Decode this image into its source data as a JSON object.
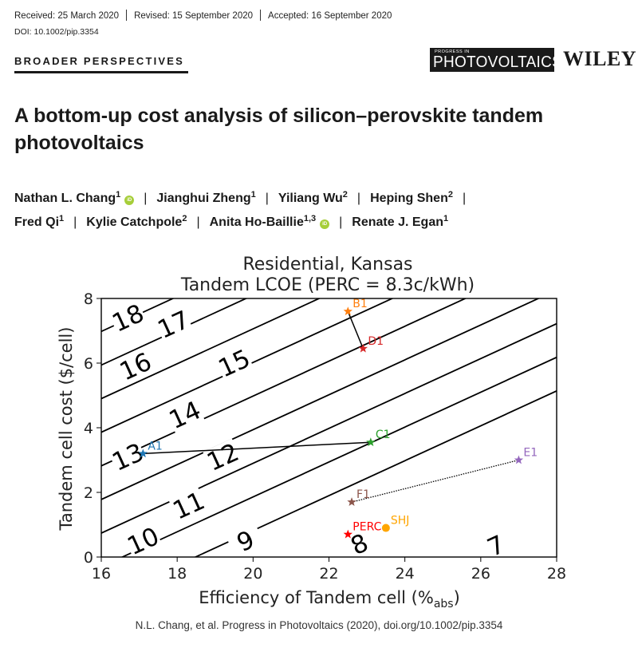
{
  "header": {
    "received": "Received: 25 March 2020",
    "revised": "Revised: 15 September 2020",
    "accepted": "Accepted: 16 September 2020",
    "doi": "DOI: 10.1002/pip.3354",
    "section": "BROADER PERSPECTIVES",
    "journal_small": "PROGRESS IN",
    "journal": "PHOTOVOLTAICS",
    "publisher": "WILEY",
    "orcid_glyph": "iD"
  },
  "article": {
    "title_line1": "A bottom-up cost analysis of silicon–perovskite tandem",
    "title_line2": "photovoltaics",
    "authors": [
      {
        "name": "Nathan L. Chang",
        "aff": "1",
        "orcid": true
      },
      {
        "name": "Jianghui Zheng",
        "aff": "1"
      },
      {
        "name": "Yiliang Wu",
        "aff": "2"
      },
      {
        "name": "Heping Shen",
        "aff": "2"
      },
      {
        "name": "Fred Qi",
        "aff": "1"
      },
      {
        "name": "Kylie Catchpole",
        "aff": "2"
      },
      {
        "name": "Anita Ho-Baillie",
        "aff": "1,3",
        "orcid": true
      },
      {
        "name": "Renate J. Egan",
        "aff": "1"
      }
    ]
  },
  "chart_data": {
    "type": "contour",
    "title": "Residential, Kansas",
    "subtitle": "Tandem LCOE (PERC = 8.3c/kWh)",
    "xlabel": "Efficiency of Tandem cell (%",
    "xlabel_sub": "abs",
    "xlabel_close": ")",
    "ylabel": "Tandem cell cost ($/cell)",
    "xlim": [
      16,
      28
    ],
    "ylim": [
      0,
      8
    ],
    "xticks": [
      16,
      18,
      20,
      22,
      24,
      26,
      28
    ],
    "yticks": [
      0,
      2,
      4,
      6,
      8
    ],
    "grid": false,
    "contour_model": {
      "slope_per_pct": 0.54,
      "x0": 16,
      "level_spacing": 1.04,
      "y_at_level8_x16": -0.3
    },
    "contour_levels": [
      7,
      8,
      9,
      10,
      11,
      12,
      13,
      14,
      15,
      16,
      17,
      18
    ],
    "contour_labels": [
      {
        "text": "18",
        "x": 16.7,
        "y": 7.4
      },
      {
        "text": "17",
        "x": 17.9,
        "y": 7.2
      },
      {
        "text": "16",
        "x": 16.9,
        "y": 5.9
      },
      {
        "text": "15",
        "x": 19.5,
        "y": 6.0
      },
      {
        "text": "14",
        "x": 18.2,
        "y": 4.4
      },
      {
        "text": "13",
        "x": 16.7,
        "y": 3.1
      },
      {
        "text": "12",
        "x": 19.2,
        "y": 3.1
      },
      {
        "text": "11",
        "x": 18.3,
        "y": 1.6
      },
      {
        "text": "10",
        "x": 17.1,
        "y": 0.5
      },
      {
        "text": "9",
        "x": 19.8,
        "y": 0.5
      },
      {
        "text": "8",
        "x": 22.8,
        "y": 0.4
      },
      {
        "text": "7",
        "x": 26.4,
        "y": 0.35
      }
    ],
    "points": [
      {
        "label": "B1",
        "x": 22.5,
        "y": 7.6,
        "color": "#ff7f0e",
        "marker": "star"
      },
      {
        "label": "D1",
        "x": 22.9,
        "y": 6.45,
        "color": "#d62728",
        "marker": "star"
      },
      {
        "label": "A1",
        "x": 17.1,
        "y": 3.2,
        "color": "#1f77b4",
        "marker": "star"
      },
      {
        "label": "C1",
        "x": 23.1,
        "y": 3.55,
        "color": "#2ca02c",
        "marker": "star"
      },
      {
        "label": "E1",
        "x": 27.0,
        "y": 3.0,
        "color": "#9467bd",
        "marker": "star"
      },
      {
        "label": "F1",
        "x": 22.6,
        "y": 1.7,
        "color": "#8c564b",
        "marker": "star"
      },
      {
        "label": "PERC",
        "x": 22.5,
        "y": 0.7,
        "color": "#ff0000",
        "marker": "star"
      },
      {
        "label": "SHJ",
        "x": 23.5,
        "y": 0.9,
        "color": "#ffa500",
        "marker": "circle"
      }
    ],
    "connections": [
      {
        "from": "B1",
        "to": "D1",
        "style": "solid"
      },
      {
        "from": "A1",
        "to": "C1",
        "style": "solid"
      },
      {
        "from": "F1",
        "to": "E1",
        "style": "dotted"
      }
    ]
  },
  "caption": "N.L. Chang, et al. Progress in Photovoltaics (2020), doi.org/10.1002/pip.3354"
}
